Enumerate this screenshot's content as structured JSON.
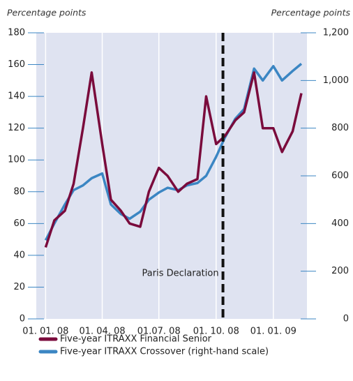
{
  "chart_data": {
    "type": "line",
    "y_label": "Percentage points",
    "y2_label": "Percentage points",
    "x": [
      "2008-01-01",
      "2008-01-15",
      "2008-02-01",
      "2008-02-15",
      "2008-03-01",
      "2008-03-15",
      "2008-04-01",
      "2008-04-15",
      "2008-05-01",
      "2008-05-15",
      "2008-06-01",
      "2008-06-15",
      "2008-07-01",
      "2008-07-15",
      "2008-08-01",
      "2008-08-15",
      "2008-09-01",
      "2008-09-15",
      "2008-10-01",
      "2008-10-15",
      "2008-11-01",
      "2008-11-15",
      "2008-12-01",
      "2008-12-15",
      "2009-01-01",
      "2009-01-15",
      "2009-02-01",
      "2009-02-15"
    ],
    "series": [
      {
        "name": "Five-year ITRAXX Financial Senior",
        "color": "#7a0b3c",
        "axis": "y",
        "values": [
          45,
          62,
          68,
          85,
          120,
          155,
          110,
          75,
          68,
          60,
          58,
          80,
          95,
          90,
          80,
          85,
          88,
          140,
          110,
          115,
          125,
          130,
          155,
          120,
          120,
          105,
          118,
          142
        ]
      },
      {
        "name": "Five-year ITRAXX Crossover (right-hand scale)",
        "color": "#3b86c3",
        "axis": "y2",
        "values": [
          330,
          400,
          480,
          540,
          560,
          590,
          610,
          480,
          440,
          420,
          450,
          500,
          530,
          550,
          540,
          560,
          570,
          600,
          680,
          760,
          840,
          880,
          1050,
          1000,
          1060,
          1000,
          1040,
          1070
        ]
      }
    ],
    "xlim": [
      "2007-12-17",
      "2009-02-24"
    ],
    "xticks": [
      {
        "value": "2008-01-01",
        "label": "01. 01. 08"
      },
      {
        "value": "2008-04-01",
        "label": "01. 04. 08"
      },
      {
        "value": "2008-07-01",
        "label": "01.07. 08"
      },
      {
        "value": "2008-10-01",
        "label": "01. 10. 08"
      },
      {
        "value": "2009-01-01",
        "label": "01. 01. 09"
      }
    ],
    "ylim": [
      0,
      180
    ],
    "yticks": [
      0,
      20,
      40,
      60,
      80,
      100,
      120,
      140,
      160,
      180
    ],
    "y2lim": [
      0,
      1200
    ],
    "y2ticks": [
      0,
      200,
      400,
      600,
      800,
      {
        "value": 1000,
        "label": "1,000"
      },
      {
        "value": 1200,
        "label": "1,200"
      }
    ],
    "grid": true,
    "background": "#dfe3f1",
    "annotations": [
      {
        "text": "Paris Declaration",
        "x": "2008-10-12"
      }
    ]
  }
}
